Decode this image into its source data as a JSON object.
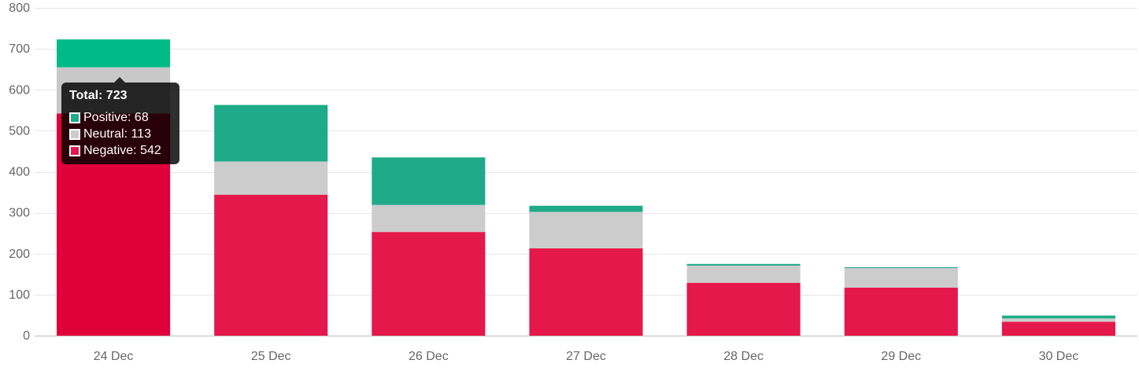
{
  "chart_data": {
    "type": "bar",
    "stacked": true,
    "categories": [
      "24 Dec",
      "25 Dec",
      "26 Dec",
      "27 Dec",
      "28 Dec",
      "29 Dec",
      "30 Dec"
    ],
    "series": [
      {
        "name": "Negative",
        "color": "#e4184a",
        "values": [
          542,
          344,
          253,
          213,
          129,
          117,
          34
        ]
      },
      {
        "name": "Neutral",
        "color": "#cccccc",
        "values": [
          113,
          81,
          66,
          89,
          42,
          48,
          8
        ]
      },
      {
        "name": "Positive",
        "color": "#1fab89",
        "values": [
          68,
          138,
          116,
          15,
          4,
          2,
          7
        ]
      }
    ],
    "highlighted_index": 0,
    "highlight_colors": {
      "Negative": "#e0003a",
      "Neutral": "#c8c8c8",
      "Positive": "#00bb88"
    },
    "ylim": [
      0,
      800
    ],
    "yticks": [
      0,
      100,
      200,
      300,
      400,
      500,
      600,
      700,
      800
    ],
    "grid": true,
    "xlabel": "",
    "ylabel": ""
  },
  "tooltip": {
    "title": "Total: 723",
    "rows": [
      {
        "label": "Positive: 68",
        "color": "#1fab89"
      },
      {
        "label": "Neutral: 113",
        "color": "#cccccc"
      },
      {
        "label": "Negative: 542",
        "color": "#e4184a"
      }
    ]
  }
}
